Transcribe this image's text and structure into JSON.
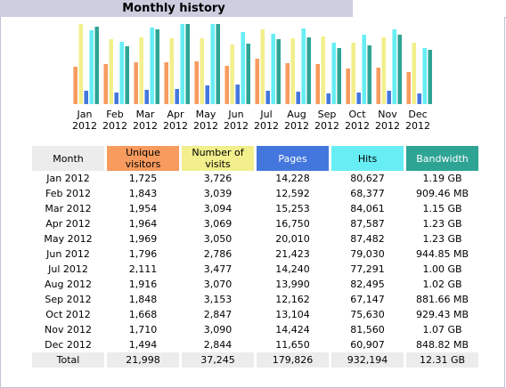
{
  "section_title": "Monthly history",
  "colors": {
    "visitors": "#f79b5e",
    "visits": "#f2ef8c",
    "pages": "#4477dd",
    "hits": "#66eef4",
    "bandwidth": "#2ea495"
  },
  "table": {
    "headers": {
      "month": "Month",
      "visitors": "Unique visitors",
      "visits": "Number of visits",
      "pages": "Pages",
      "hits": "Hits",
      "bandwidth": "Bandwidth"
    },
    "rows": [
      {
        "month": "Jan 2012",
        "visitors": "1,725",
        "visits": "3,726",
        "pages": "14,228",
        "hits": "80,627",
        "bandwidth": "1.19 GB"
      },
      {
        "month": "Feb 2012",
        "visitors": "1,843",
        "visits": "3,039",
        "pages": "12,592",
        "hits": "68,377",
        "bandwidth": "909.46 MB"
      },
      {
        "month": "Mar 2012",
        "visitors": "1,954",
        "visits": "3,094",
        "pages": "15,253",
        "hits": "84,061",
        "bandwidth": "1.15 GB"
      },
      {
        "month": "Apr 2012",
        "visitors": "1,964",
        "visits": "3,069",
        "pages": "16,750",
        "hits": "87,587",
        "bandwidth": "1.23 GB"
      },
      {
        "month": "May 2012",
        "visitors": "1,969",
        "visits": "3,050",
        "pages": "20,010",
        "hits": "87,482",
        "bandwidth": "1.23 GB"
      },
      {
        "month": "Jun 2012",
        "visitors": "1,796",
        "visits": "2,786",
        "pages": "21,423",
        "hits": "79,030",
        "bandwidth": "944.85 MB"
      },
      {
        "month": "Jul 2012",
        "visitors": "2,111",
        "visits": "3,477",
        "pages": "14,240",
        "hits": "77,291",
        "bandwidth": "1.00 GB"
      },
      {
        "month": "Aug 2012",
        "visitors": "1,916",
        "visits": "3,070",
        "pages": "13,990",
        "hits": "82,495",
        "bandwidth": "1.02 GB"
      },
      {
        "month": "Sep 2012",
        "visitors": "1,848",
        "visits": "3,153",
        "pages": "12,162",
        "hits": "67,147",
        "bandwidth": "881.66 MB"
      },
      {
        "month": "Oct 2012",
        "visitors": "1,668",
        "visits": "2,847",
        "pages": "13,104",
        "hits": "75,630",
        "bandwidth": "929.43 MB"
      },
      {
        "month": "Nov 2012",
        "visitors": "1,710",
        "visits": "3,090",
        "pages": "14,424",
        "hits": "81,560",
        "bandwidth": "1.07 GB"
      },
      {
        "month": "Dec 2012",
        "visitors": "1,494",
        "visits": "2,844",
        "pages": "11,650",
        "hits": "60,907",
        "bandwidth": "848.82 MB"
      }
    ],
    "total": {
      "month": "Total",
      "visitors": "21,998",
      "visits": "37,245",
      "pages": "179,826",
      "hits": "932,194",
      "bandwidth": "12.31 GB"
    }
  },
  "chart_data": {
    "type": "bar",
    "categories": [
      [
        "Jan",
        "2012"
      ],
      [
        "Feb",
        "2012"
      ],
      [
        "Mar",
        "2012"
      ],
      [
        "Apr",
        "2012"
      ],
      [
        "May",
        "2012"
      ],
      [
        "Jun",
        "2012"
      ],
      [
        "Jul",
        "2012"
      ],
      [
        "Aug",
        "2012"
      ],
      [
        "Sep",
        "2012"
      ],
      [
        "Oct",
        "2012"
      ],
      [
        "Nov",
        "2012"
      ],
      [
        "Dec",
        "2012"
      ]
    ],
    "series": [
      {
        "key": "visitors",
        "values": [
          1725,
          1843,
          1954,
          1964,
          1969,
          1796,
          2111,
          1916,
          1848,
          1668,
          1710,
          1494
        ]
      },
      {
        "key": "visits",
        "values": [
          3726,
          3039,
          3094,
          3069,
          3050,
          2786,
          3477,
          3070,
          3153,
          2847,
          3090,
          2844
        ]
      },
      {
        "key": "pages",
        "values": [
          14228,
          12592,
          15253,
          16750,
          20010,
          21423,
          14240,
          13990,
          12162,
          13104,
          14424,
          11650
        ]
      },
      {
        "key": "hits",
        "values": [
          80627,
          68377,
          84061,
          87587,
          87482,
          79030,
          77291,
          82495,
          67147,
          75630,
          81560,
          60907
        ]
      },
      {
        "key": "bandwidth_gb",
        "values": [
          1.19,
          0.888,
          1.15,
          1.23,
          1.23,
          0.923,
          1.0,
          1.02,
          0.861,
          0.908,
          1.07,
          0.829
        ]
      }
    ],
    "grid": false,
    "legend": "none"
  }
}
